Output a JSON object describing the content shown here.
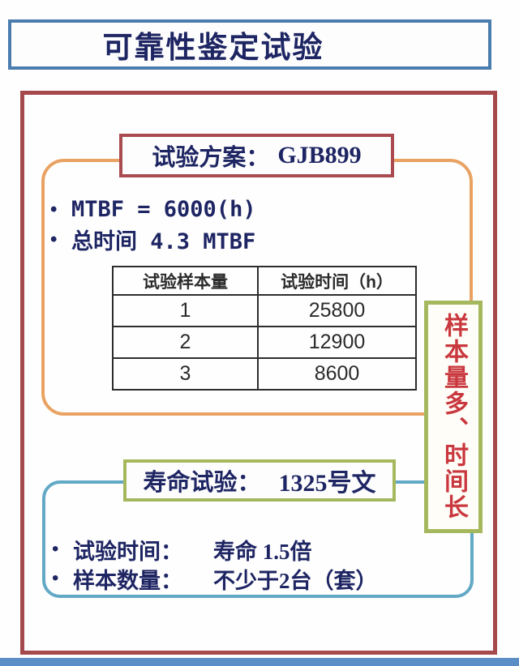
{
  "title": {
    "text": "可靠性鉴定试验"
  },
  "glyphs": {
    "bullet": "•"
  },
  "reliability": {
    "header_label": "试验方案：",
    "header_value": "GJB899",
    "bullets": [
      "MTBF = 6000(h)",
      "总时间 4.3 MTBF"
    ],
    "table": {
      "columns": [
        "试验样本量",
        "试验时间（h）"
      ],
      "rows": [
        [
          "1",
          "25800"
        ],
        [
          "2",
          "12900"
        ],
        [
          "3",
          "8600"
        ]
      ]
    }
  },
  "side_note": {
    "text": "样本量多、时间长"
  },
  "life": {
    "header_label": "寿命试验：",
    "header_value": "1325号文",
    "bullets": [
      {
        "label": "试验时间：",
        "value": "寿命 1.5倍"
      },
      {
        "label": "样本数量：",
        "value": "不少于2台（套）"
      }
    ]
  },
  "colors": {
    "title_border": "#4a7cae",
    "navy_text": "#1e2563",
    "outer_border": "#a6494d",
    "plan_border": "#a94b50",
    "orange_border": "#e9a262",
    "olive_border": "#a5b85e",
    "teal_border": "#62a9c6",
    "red_note_text": "#c9383e",
    "bottom_bar": "#5b8ec6",
    "table_line": "#2d2d2d",
    "table_text": "#2b2b2b"
  }
}
